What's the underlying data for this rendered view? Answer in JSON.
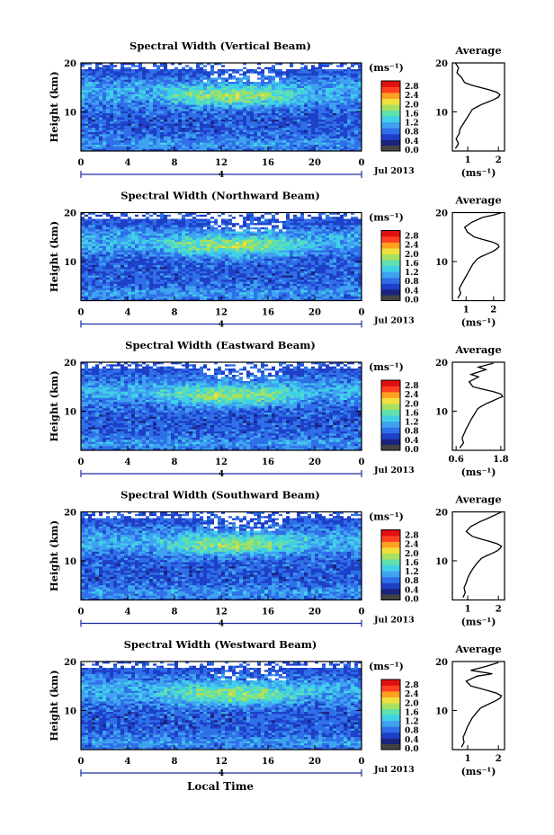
{
  "figure": {
    "xlabel_bottom": "Local Time",
    "date_label": "Jul 2013",
    "day_marker": "4",
    "colorbar_unit": "(ms⁻¹)",
    "average_title": "Average",
    "average_xlabel": "(ms⁻¹)"
  },
  "colors": {
    "colormap": [
      "#1a237e",
      "#1e40c8",
      "#2f6fe8",
      "#3fa2f0",
      "#40d0e8",
      "#5fe0b0",
      "#a8e060",
      "#f0e040",
      "#ffa020",
      "#ff4020",
      "#e01010"
    ],
    "colorbar_base": "#444444"
  },
  "chart_data": [
    {
      "type": "heatmap",
      "title": "Spectral Width (Vertical Beam)",
      "ylabel": "Height (km)",
      "xticks": [
        "0",
        "4",
        "8",
        "12",
        "16",
        "20",
        "0"
      ],
      "yticks": [
        "10",
        "20"
      ],
      "ylim": [
        2,
        20
      ],
      "colorbar_ticks": [
        "2.8",
        "2.4",
        "2.0",
        "1.6",
        "1.2",
        "0.8",
        "0.4",
        "0.0"
      ],
      "average": {
        "xticks": [
          "1",
          "2"
        ],
        "yticks": [
          "10",
          "20"
        ],
        "xlim": [
          0.5,
          2.2
        ],
        "x": [
          0.6,
          0.7,
          0.62,
          0.72,
          0.75,
          0.85,
          0.95,
          1.05,
          1.15,
          1.3,
          1.45,
          1.65,
          1.85,
          2.0,
          2.05,
          1.95,
          1.7,
          1.4,
          1.1,
          0.9,
          0.8,
          0.65,
          0.7,
          0.6
        ],
        "y": [
          2.5,
          3.5,
          4.5,
          5.5,
          6.5,
          7.5,
          8.5,
          9.5,
          10.5,
          11.0,
          11.5,
          12.0,
          12.5,
          13.0,
          13.5,
          14.0,
          14.5,
          15.0,
          15.5,
          16.0,
          17.0,
          18.0,
          19.0,
          20.0
        ]
      }
    },
    {
      "type": "heatmap",
      "title": "Spectral Width (Northward Beam)",
      "ylabel": "Height (km)",
      "xticks": [
        "0",
        "4",
        "8",
        "12",
        "16",
        "20",
        "0"
      ],
      "yticks": [
        "10",
        "20"
      ],
      "ylim": [
        2,
        20
      ],
      "colorbar_ticks": [
        "2.8",
        "2.4",
        "2.0",
        "1.6",
        "1.2",
        "0.8",
        "0.4",
        "0.0"
      ],
      "average": {
        "xticks": [
          "1",
          "2"
        ],
        "yticks": [
          "10",
          "20"
        ],
        "xlim": [
          0.5,
          2.4
        ],
        "x": [
          0.7,
          0.8,
          0.75,
          0.85,
          0.95,
          1.05,
          1.15,
          1.25,
          1.4,
          1.55,
          1.75,
          1.95,
          2.1,
          2.2,
          2.15,
          1.95,
          1.6,
          1.3,
          1.05,
          0.95,
          1.2,
          1.6,
          2.0,
          2.3
        ],
        "y": [
          2.5,
          3.5,
          4.5,
          5.5,
          6.5,
          7.5,
          8.5,
          9.5,
          10.5,
          11.0,
          11.5,
          12.0,
          12.5,
          13.0,
          13.5,
          14.0,
          14.5,
          15.0,
          16.0,
          17.0,
          18.0,
          19.0,
          19.5,
          20.0
        ]
      }
    },
    {
      "type": "heatmap",
      "title": "Spectral Width (Eastward Beam)",
      "ylabel": "Height (km)",
      "xticks": [
        "0",
        "4",
        "8",
        "12",
        "16",
        "20",
        "0"
      ],
      "yticks": [
        "10",
        "20"
      ],
      "ylim": [
        2,
        20
      ],
      "colorbar_ticks": [
        "2.8",
        "2.4",
        "2.0",
        "1.6",
        "1.2",
        "0.8",
        "0.4",
        "0.0"
      ],
      "average": {
        "xticks": [
          "0.6",
          "1.8"
        ],
        "yticks": [
          "10",
          "20"
        ],
        "xlim": [
          0.5,
          1.9
        ],
        "x": [
          0.7,
          0.8,
          0.76,
          0.82,
          0.88,
          0.95,
          1.02,
          1.1,
          1.18,
          1.28,
          1.4,
          1.55,
          1.7,
          1.85,
          1.8,
          1.6,
          1.3,
          1.05,
          0.95,
          1.2,
          1.0,
          1.4,
          1.2,
          1.6
        ],
        "y": [
          2.5,
          3.5,
          4.5,
          5.5,
          6.5,
          7.5,
          8.5,
          9.5,
          10.5,
          11.0,
          11.5,
          12.0,
          12.5,
          13.0,
          13.5,
          14.0,
          14.5,
          15.0,
          16.0,
          17.0,
          17.5,
          18.5,
          19.0,
          19.8
        ]
      }
    },
    {
      "type": "heatmap",
      "title": "Spectral Width (Southward Beam)",
      "ylabel": "Height (km)",
      "xticks": [
        "0",
        "4",
        "8",
        "12",
        "16",
        "20",
        "0"
      ],
      "yticks": [
        "10",
        "20"
      ],
      "ylim": [
        2,
        20
      ],
      "colorbar_ticks": [
        "2.8",
        "2.4",
        "2.0",
        "1.6",
        "1.2",
        "0.8",
        "0.4",
        "0.0"
      ],
      "average": {
        "xticks": [
          "1",
          "2"
        ],
        "yticks": [
          "10",
          "20"
        ],
        "xlim": [
          0.5,
          2.2
        ],
        "x": [
          0.85,
          0.92,
          0.88,
          0.95,
          1.0,
          1.08,
          1.18,
          1.3,
          1.45,
          1.6,
          1.78,
          1.95,
          2.05,
          2.1,
          1.95,
          1.7,
          1.4,
          1.15,
          0.95,
          1.1,
          1.4,
          1.7,
          1.9,
          2.1
        ],
        "y": [
          2.5,
          3.5,
          4.5,
          5.5,
          6.5,
          7.5,
          8.5,
          9.5,
          10.5,
          11.0,
          11.5,
          12.0,
          12.5,
          13.0,
          13.5,
          14.0,
          14.5,
          15.0,
          16.0,
          17.0,
          18.0,
          18.8,
          19.4,
          20.0
        ]
      }
    },
    {
      "type": "heatmap",
      "title": "Spectral Width (Westward Beam)",
      "ylabel": "Height (km)",
      "xticks": [
        "0",
        "4",
        "8",
        "12",
        "16",
        "20",
        "0"
      ],
      "yticks": [
        "10",
        "20"
      ],
      "ylim": [
        2,
        20
      ],
      "colorbar_ticks": [
        "2.8",
        "2.4",
        "2.0",
        "1.6",
        "1.2",
        "0.8",
        "0.4",
        "0.0"
      ],
      "average": {
        "xticks": [
          "1",
          "2"
        ],
        "yticks": [
          "10",
          "20"
        ],
        "xlim": [
          0.5,
          2.2
        ],
        "x": [
          0.8,
          0.88,
          0.85,
          0.92,
          0.98,
          1.06,
          1.15,
          1.28,
          1.42,
          1.58,
          1.75,
          1.92,
          2.05,
          2.1,
          1.95,
          1.7,
          1.4,
          1.1,
          0.95,
          1.3,
          1.8,
          1.1,
          1.6,
          2.0
        ],
        "y": [
          2.5,
          3.5,
          4.5,
          5.5,
          6.5,
          7.5,
          8.5,
          9.5,
          10.5,
          11.0,
          11.5,
          12.0,
          12.5,
          13.0,
          13.5,
          14.0,
          14.5,
          15.0,
          16.0,
          17.0,
          17.5,
          18.2,
          19.0,
          19.8
        ]
      }
    }
  ]
}
